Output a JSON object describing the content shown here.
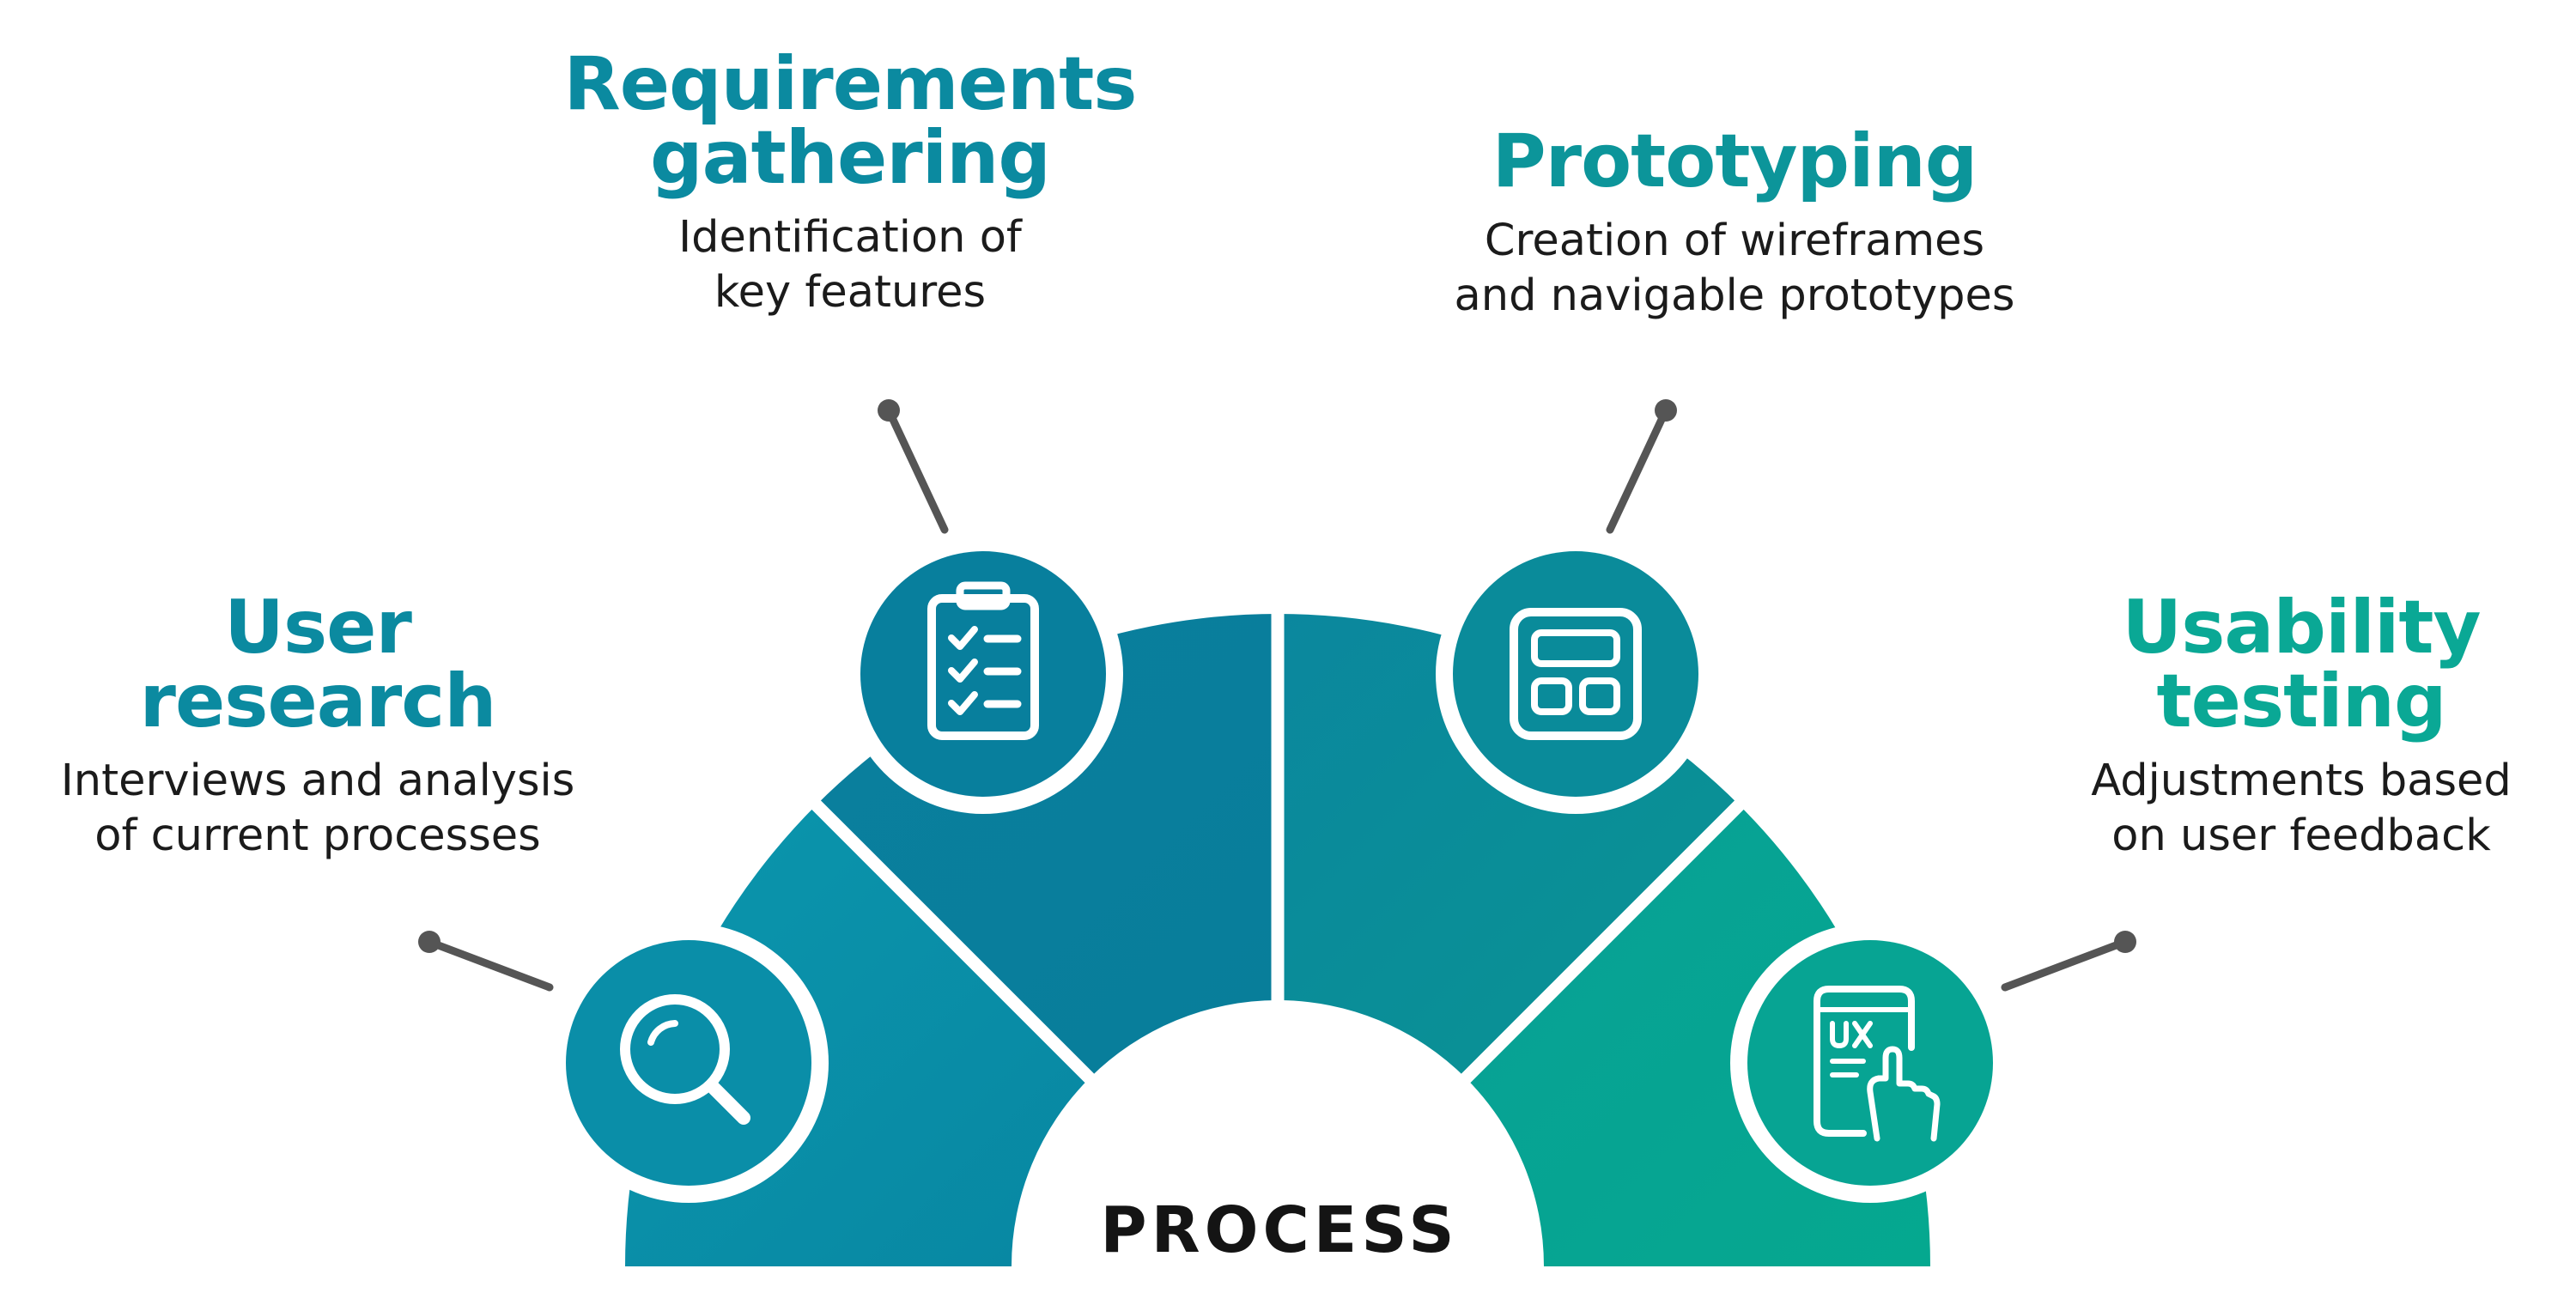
{
  "center_label": "PROCESS",
  "colors": {
    "segment_1": "#0a8fa9",
    "segment_2": "#077f9b",
    "segment_3": "#0a8c98",
    "segment_4": "#07a493",
    "connector": "#555555",
    "text": "#1b1b1b"
  },
  "steps": [
    {
      "title_lines": [
        "User",
        "research"
      ],
      "desc_lines": [
        "Interviews and analysis",
        "of current processes"
      ],
      "icon": "magnifying-glass-icon"
    },
    {
      "title_lines": [
        "Requirements",
        "gathering"
      ],
      "desc_lines": [
        "Identification of",
        "key features"
      ],
      "icon": "clipboard-checklist-icon"
    },
    {
      "title_lines": [
        "Prototyping"
      ],
      "desc_lines": [
        "Creation of wireframes",
        "and navigable prototypes"
      ],
      "icon": "wireframe-layout-icon"
    },
    {
      "title_lines": [
        "Usability",
        "testing"
      ],
      "desc_lines": [
        "Adjustments based",
        "on user feedback"
      ],
      "icon": "ux-phone-touch-icon"
    }
  ]
}
